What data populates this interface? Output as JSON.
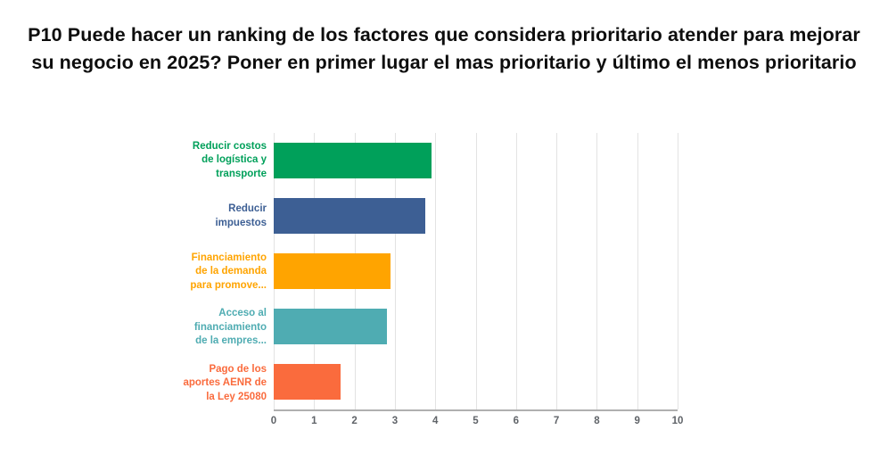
{
  "header": {
    "title_lines": [
      "P10 Puede hacer un ranking de los factores que considera prioritario atender para mejorar",
      "su negocio en 2025? Poner en primer lugar el mas prioritario y último el menos prioritario"
    ]
  },
  "chart_data": {
    "type": "bar",
    "orientation": "horizontal",
    "title": "P10 Puede hacer un ranking de los factores que considera prioritario atender para mejorar su negocio en 2025? Poner en primer lugar el mas prioritario y último el menos prioritario",
    "categories": [
      "Reducir costos de logística y transporte",
      "Reducir impuestos",
      "Financiamiento de la demanda para promove...",
      "Acceso al financiamiento de la empres...",
      "Pago de los aportes AENR de la Ley 25080"
    ],
    "categories_wrapped": [
      [
        "Reducir costos",
        "de logística y",
        "transporte"
      ],
      [
        "Reducir",
        "impuestos"
      ],
      [
        "Financiamiento",
        "de la demanda",
        "para promove..."
      ],
      [
        "Acceso al",
        "financiamiento",
        "de la empres..."
      ],
      [
        "Pago de los",
        "aportes AENR de",
        "la Ley 25080"
      ]
    ],
    "values": [
      3.9,
      3.75,
      2.9,
      2.8,
      1.65
    ],
    "bar_colors": [
      "#00A05A",
      "#3D5F94",
      "#FFA400",
      "#4FACB2",
      "#FA6B3D"
    ],
    "xlabel": "",
    "ylabel": "",
    "xlim": [
      0,
      10
    ],
    "x_ticks": [
      "0",
      "1",
      "2",
      "3",
      "4",
      "5",
      "6",
      "7",
      "8",
      "9",
      "10"
    ],
    "grid": true,
    "legend": "none",
    "background_color": "#FFFFFF",
    "gridline_color": "#E3E3E3",
    "axis_line_color": "#B0B0B0",
    "tick_label_color": "#5F6368"
  }
}
